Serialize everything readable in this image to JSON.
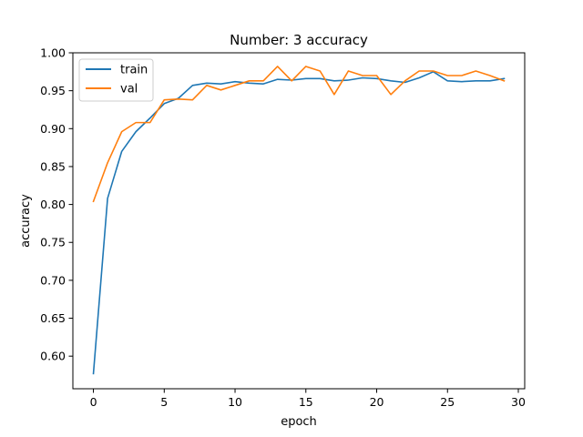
{
  "chart_data": {
    "type": "line",
    "title": "Number: 3 accuracy",
    "xlabel": "epoch",
    "ylabel": "accuracy",
    "xlim": [
      -1.45,
      30.45
    ],
    "ylim": [
      0.557,
      1.0
    ],
    "xticks": [
      0,
      5,
      10,
      15,
      20,
      25,
      30
    ],
    "yticks": [
      0.6,
      0.65,
      0.7,
      0.75,
      0.8,
      0.85,
      0.9,
      0.95,
      1.0
    ],
    "xtick_labels": [
      "0",
      "5",
      "10",
      "15",
      "20",
      "25",
      "30"
    ],
    "ytick_labels": [
      "0.60",
      "0.65",
      "0.70",
      "0.75",
      "0.80",
      "0.85",
      "0.90",
      "0.95",
      "1.00"
    ],
    "grid": false,
    "legend_position": "top-left",
    "x": [
      0,
      1,
      2,
      3,
      4,
      5,
      6,
      7,
      8,
      9,
      10,
      11,
      12,
      13,
      14,
      15,
      16,
      17,
      18,
      19,
      20,
      21,
      22,
      23,
      24,
      25,
      26,
      27,
      28,
      29
    ],
    "series": [
      {
        "name": "train",
        "color": "#1f77b4",
        "values": [
          0.577,
          0.808,
          0.87,
          0.896,
          0.914,
          0.933,
          0.94,
          0.957,
          0.96,
          0.959,
          0.962,
          0.96,
          0.959,
          0.965,
          0.964,
          0.966,
          0.966,
          0.963,
          0.964,
          0.967,
          0.966,
          0.963,
          0.961,
          0.967,
          0.975,
          0.963,
          0.962,
          0.963,
          0.963,
          0.966
        ]
      },
      {
        "name": "val",
        "color": "#ff7f0e",
        "values": [
          0.804,
          0.855,
          0.896,
          0.908,
          0.908,
          0.938,
          0.939,
          0.938,
          0.957,
          0.951,
          0.957,
          0.963,
          0.963,
          0.982,
          0.963,
          0.982,
          0.976,
          0.945,
          0.976,
          0.97,
          0.97,
          0.945,
          0.963,
          0.976,
          0.976,
          0.97,
          0.97,
          0.976,
          0.97,
          0.963
        ]
      }
    ]
  }
}
